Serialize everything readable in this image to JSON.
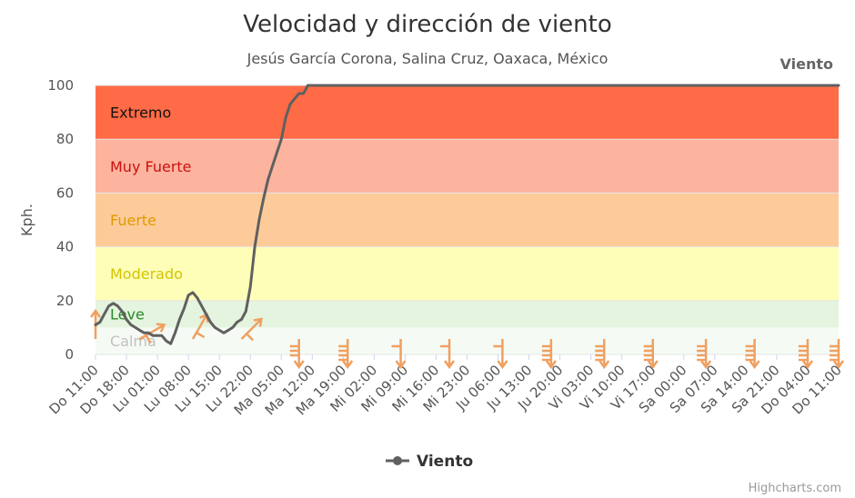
{
  "chart_data": {
    "type": "line",
    "title": "Velocidad y dirección de viento",
    "subtitle": "Jesús García Corona, Salina Cruz, Oaxaca, México",
    "ylabel": "Kph.",
    "ylim": [
      0,
      100
    ],
    "yticks": [
      0,
      20,
      40,
      60,
      80,
      100
    ],
    "grid": true,
    "legend": "bottom-center",
    "credits": "Highcharts.com",
    "x_range_hours": [
      0,
      168
    ],
    "x_tick_labels": [
      {
        "h": 0,
        "label": "Do 11:00"
      },
      {
        "h": 7,
        "label": "Do 18:00"
      },
      {
        "h": 14,
        "label": "Lu 01:00"
      },
      {
        "h": 21,
        "label": "Lu 08:00"
      },
      {
        "h": 28,
        "label": "Lu 15:00"
      },
      {
        "h": 35,
        "label": "Lu 22:00"
      },
      {
        "h": 42,
        "label": "Ma 05:00"
      },
      {
        "h": 49,
        "label": "Ma 12:00"
      },
      {
        "h": 56,
        "label": "Ma 19:00"
      },
      {
        "h": 63,
        "label": "Mi 02:00"
      },
      {
        "h": 70,
        "label": "Mi 09:00"
      },
      {
        "h": 77,
        "label": "Mi 16:00"
      },
      {
        "h": 84,
        "label": "Mi 23:00"
      },
      {
        "h": 91,
        "label": "Ju 06:00"
      },
      {
        "h": 98,
        "label": "Ju 13:00"
      },
      {
        "h": 105,
        "label": "Ju 20:00"
      },
      {
        "h": 112,
        "label": "Vi 03:00"
      },
      {
        "h": 119,
        "label": "Vi 10:00"
      },
      {
        "h": 126,
        "label": "Vi 17:00"
      },
      {
        "h": 133,
        "label": "Sa 00:00"
      },
      {
        "h": 140,
        "label": "Sa 07:00"
      },
      {
        "h": 147,
        "label": "Sa 14:00"
      },
      {
        "h": 154,
        "label": "Sa 21:00"
      },
      {
        "h": 161,
        "label": "Do 04:00"
      },
      {
        "h": 168,
        "label": "Do 11:00"
      }
    ],
    "bands": [
      {
        "from": 80,
        "to": 100,
        "label": "Extremo",
        "color": "#ff6b47",
        "label_color": "#111111"
      },
      {
        "from": 60,
        "to": 80,
        "label": "Muy Fuerte",
        "color": "#fcb49f",
        "label_color": "#cc1111"
      },
      {
        "from": 40,
        "to": 60,
        "label": "Fuerte",
        "color": "#fdcb9a",
        "label_color": "#e09a00"
      },
      {
        "from": 20,
        "to": 40,
        "label": "Moderado",
        "color": "#fefeb8",
        "label_color": "#d4c400"
      },
      {
        "from": 10,
        "to": 20,
        "label": "Leve",
        "color": "#e4f4df",
        "label_color": "#2a8a2a"
      },
      {
        "from": 0,
        "to": 10,
        "label": "Calma",
        "color": "#f5fbf4",
        "label_color": "#c0c0c0"
      }
    ],
    "series": [
      {
        "name": "Viento",
        "color": "#606060",
        "x": [
          0,
          1,
          2,
          3,
          4,
          5,
          6,
          7,
          8,
          9,
          10,
          11,
          12,
          13,
          14,
          15,
          16,
          17,
          18,
          19,
          20,
          21,
          22,
          23,
          24,
          25,
          26,
          27,
          28,
          29,
          30,
          31,
          32,
          33,
          34,
          35,
          36,
          37,
          38,
          39,
          40,
          41,
          42,
          43,
          44,
          45,
          46,
          47,
          48,
          49,
          50,
          51,
          52,
          53,
          54,
          55,
          56,
          57,
          58,
          59,
          60,
          61,
          62,
          63,
          64,
          65,
          66,
          68,
          70,
          72,
          74,
          76,
          78,
          80,
          82,
          84,
          86,
          88,
          90,
          92,
          94,
          96,
          98,
          100,
          102,
          104,
          106,
          108,
          110,
          112,
          114,
          116,
          118,
          120,
          122,
          124,
          126,
          128,
          130,
          132,
          134,
          136,
          138,
          140,
          142,
          144,
          146,
          148,
          150,
          152,
          154,
          156,
          158,
          160,
          162,
          164,
          166,
          168
        ],
        "y": [
          11,
          12,
          15,
          18,
          19,
          18,
          16,
          13,
          11,
          10,
          9,
          8,
          8,
          7,
          7,
          7,
          5,
          4,
          8,
          13,
          17,
          22,
          23,
          21,
          18,
          15,
          12,
          10,
          9,
          8,
          9,
          10,
          12,
          13,
          16,
          25,
          40,
          50,
          58,
          65,
          70,
          75,
          80,
          88,
          93,
          95,
          97,
          97,
          100,
          100,
          100,
          100,
          100,
          100,
          100,
          100,
          100,
          100,
          100,
          100,
          100,
          100,
          100,
          100,
          100,
          100,
          100,
          100,
          100,
          100,
          100,
          100,
          100,
          100,
          100,
          100,
          100,
          100,
          100,
          100,
          100,
          100,
          100,
          100,
          100,
          100,
          100,
          100,
          100,
          100,
          100,
          100,
          100,
          100,
          100,
          100,
          100,
          100,
          100,
          100,
          100,
          100,
          100,
          100,
          100,
          100,
          100,
          100,
          100,
          100,
          100,
          100,
          100,
          100,
          100,
          100,
          100,
          100
        ]
      }
    ],
    "direction_arrows": {
      "color": "#f0a060",
      "hours": [
        0,
        10,
        22,
        33,
        46,
        57,
        69,
        80,
        92,
        103,
        115,
        126,
        138,
        149,
        161,
        168
      ],
      "rotation_deg": [
        0,
        60,
        30,
        45,
        180,
        180,
        180,
        180,
        180,
        180,
        180,
        180,
        180,
        180,
        180,
        180
      ],
      "barbs": [
        0,
        1,
        1,
        1,
        3,
        4,
        1,
        1,
        1,
        4,
        4,
        4,
        4,
        4,
        4,
        4
      ]
    }
  }
}
